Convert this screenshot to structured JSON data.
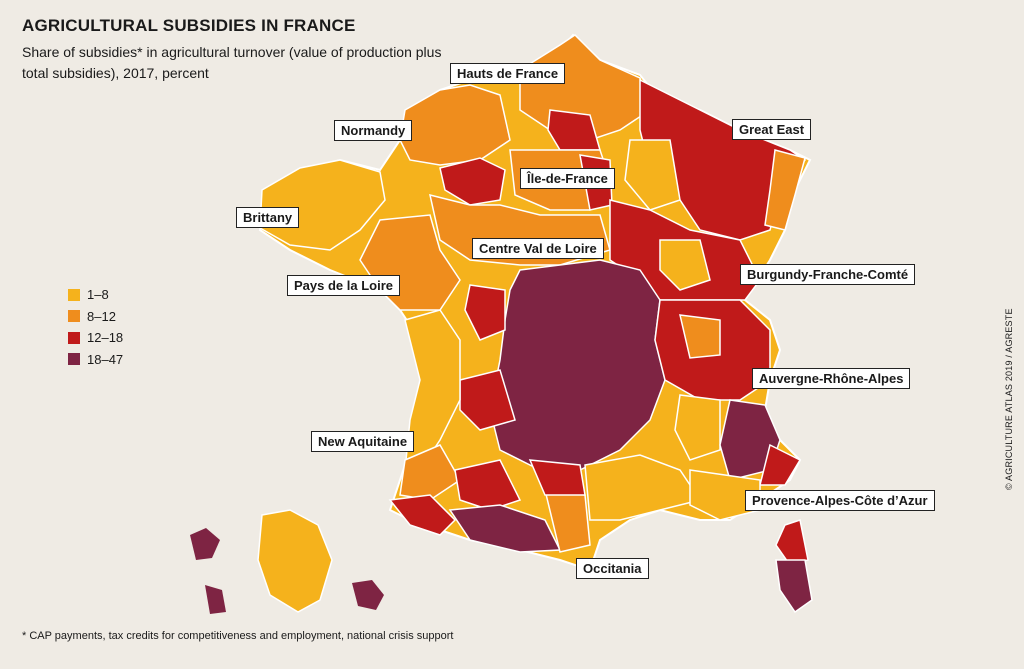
{
  "title": "AGRICULTURAL SUBSIDIES IN FRANCE",
  "subtitle": "Share of subsidies* in agricultural turnover (value of production plus total subsidies), 2017, percent",
  "legend": {
    "items": [
      {
        "label": "1–8",
        "color": "#f5b21c"
      },
      {
        "label": "8–12",
        "color": "#ef8d1d"
      },
      {
        "label": "12–18",
        "color": "#c01a1a"
      },
      {
        "label": "18–47",
        "color": "#7e2443"
      }
    ]
  },
  "regions": {
    "hauts_de_france": "Hauts de France",
    "normandy": "Normandy",
    "great_east": "Great East",
    "ile_de_france": "Île-de-France",
    "brittany": "Brittany",
    "centre_val_de_loire": "Centre Val de Loire",
    "burgundy": "Burgundy-Franche-Comté",
    "pays_de_la_loire": "Pays de la Loire",
    "auvergne": "Auvergne-Rhône-Alpes",
    "new_aquitaine": "New Aquitaine",
    "provence": "Provence-Alpes-Côte d’Azur",
    "occitania": "Occitania"
  },
  "footnote": "* CAP payments, tax credits for competitiveness and employment, national crisis support",
  "credit": "© AGRICULTURE ATLAS 2019 / AGRESTE"
}
